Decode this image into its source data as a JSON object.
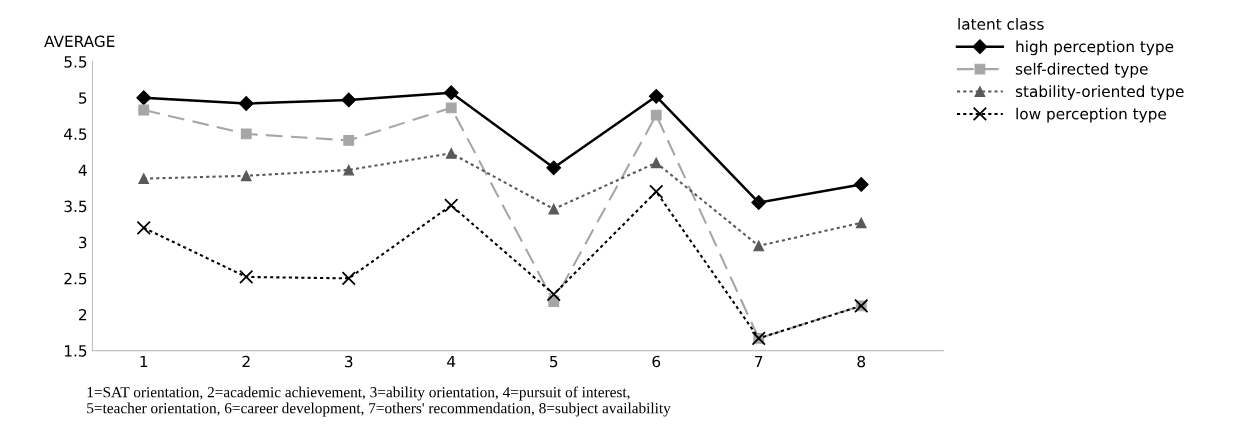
{
  "chart_data": {
    "type": "line",
    "ylabel": "AVERAGE",
    "legend_title": "latent class",
    "categories": [
      "1",
      "2",
      "3",
      "4",
      "5",
      "6",
      "7",
      "8"
    ],
    "series": [
      {
        "name": "high perception type",
        "color": "#000000",
        "marker": "diamond",
        "line_style": "solid",
        "values": [
          5.0,
          4.92,
          4.97,
          5.07,
          4.03,
          5.02,
          3.55,
          3.8
        ]
      },
      {
        "name": "self-directed type",
        "color": "#a6a6a6",
        "marker": "square",
        "line_style": "dashed",
        "values": [
          4.83,
          4.5,
          4.41,
          4.86,
          2.18,
          4.76,
          1.67,
          2.12
        ]
      },
      {
        "name": "stability-oriented type",
        "color": "#595959",
        "marker": "triangle",
        "line_style": "dotted",
        "values": [
          3.88,
          3.92,
          4.0,
          4.23,
          3.46,
          4.1,
          2.95,
          3.27
        ]
      },
      {
        "name": "low perception type",
        "color": "#000000",
        "marker": "cross",
        "line_style": "dotted",
        "values": [
          3.2,
          2.52,
          2.5,
          3.51,
          2.28,
          3.7,
          1.67,
          2.12
        ]
      }
    ],
    "ylim": [
      1.5,
      5.5
    ],
    "yticks": [
      1.5,
      2,
      2.5,
      3,
      3.5,
      4,
      4.5,
      5,
      5.5
    ],
    "grid": false,
    "legend": "right",
    "annotations": [
      "1=SAT orientation, 2=academic achievement, 3=ability orientation, 4=pursuit of interest,\n5=teacher orientation, 6=career development, 7=others' recommendation, 8=subject availability"
    ]
  }
}
